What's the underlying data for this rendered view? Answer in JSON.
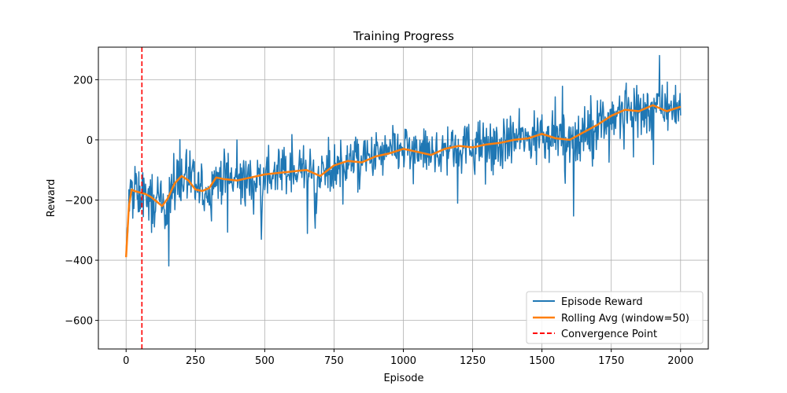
{
  "chart_data": {
    "type": "line",
    "title": "Training Progress",
    "xlabel": "Episode",
    "ylabel": "Reward",
    "xlim": [
      -100,
      2100
    ],
    "ylim": [
      -695,
      308
    ],
    "xticks": [
      0,
      250,
      500,
      750,
      1000,
      1250,
      1500,
      1750,
      2000
    ],
    "yticks": [
      -600,
      -400,
      -200,
      0,
      200
    ],
    "xtick_labels": [
      "0",
      "250",
      "500",
      "750",
      "1000",
      "1250",
      "1500",
      "1750",
      "2000"
    ],
    "ytick_labels": [
      "−600",
      "−400",
      "−200",
      "0",
      "200"
    ],
    "grid": true,
    "legend_position": "lower-right",
    "series": [
      {
        "name": "Episode Reward",
        "color": "#1f77b4",
        "style": "solid",
        "x": [
          0,
          10,
          20,
          30,
          50,
          70,
          90,
          110,
          130,
          150,
          175,
          200,
          225,
          250,
          275,
          300,
          325,
          350,
          400,
          450,
          500,
          550,
          600,
          650,
          700,
          750,
          800,
          850,
          900,
          950,
          1000,
          1050,
          1100,
          1150,
          1200,
          1250,
          1300,
          1350,
          1400,
          1450,
          1500,
          1550,
          1600,
          1650,
          1700,
          1750,
          1800,
          1850,
          1900,
          1950,
          2000
        ],
        "y": [
          -390,
          -220,
          -160,
          -175,
          -180,
          -185,
          -195,
          -210,
          -225,
          -200,
          -150,
          -120,
          -130,
          -160,
          -175,
          -165,
          -125,
          -130,
          -135,
          -130,
          -120,
          -110,
          -105,
          -100,
          -120,
          -85,
          -70,
          -75,
          -55,
          -45,
          -30,
          -40,
          -50,
          -30,
          -20,
          -25,
          -15,
          -10,
          0,
          5,
          20,
          10,
          0,
          20,
          50,
          80,
          100,
          95,
          110,
          100,
          110
        ],
        "noise_amplitude": 75
      },
      {
        "name": "Rolling Avg (window=50)",
        "color": "#ff7f0e",
        "style": "solid",
        "x": [
          0,
          10,
          20,
          30,
          50,
          70,
          90,
          110,
          130,
          150,
          175,
          200,
          225,
          250,
          275,
          300,
          325,
          350,
          400,
          450,
          500,
          550,
          600,
          650,
          700,
          750,
          800,
          850,
          900,
          950,
          1000,
          1050,
          1100,
          1150,
          1200,
          1250,
          1300,
          1350,
          1400,
          1450,
          1500,
          1550,
          1600,
          1650,
          1700,
          1750,
          1800,
          1850,
          1900,
          1950,
          2000
        ],
        "y": [
          -390,
          -220,
          -165,
          -170,
          -175,
          -180,
          -190,
          -205,
          -220,
          -195,
          -145,
          -120,
          -135,
          -165,
          -170,
          -160,
          -125,
          -130,
          -135,
          -125,
          -115,
          -110,
          -105,
          -100,
          -120,
          -85,
          -70,
          -75,
          -55,
          -45,
          -30,
          -40,
          -50,
          -30,
          -20,
          -25,
          -15,
          -10,
          0,
          5,
          20,
          5,
          0,
          25,
          50,
          80,
          100,
          95,
          115,
          95,
          110
        ]
      },
      {
        "name": "Convergence Point",
        "color": "#ff0000",
        "style": "dashed",
        "x_value": 57
      }
    ]
  }
}
